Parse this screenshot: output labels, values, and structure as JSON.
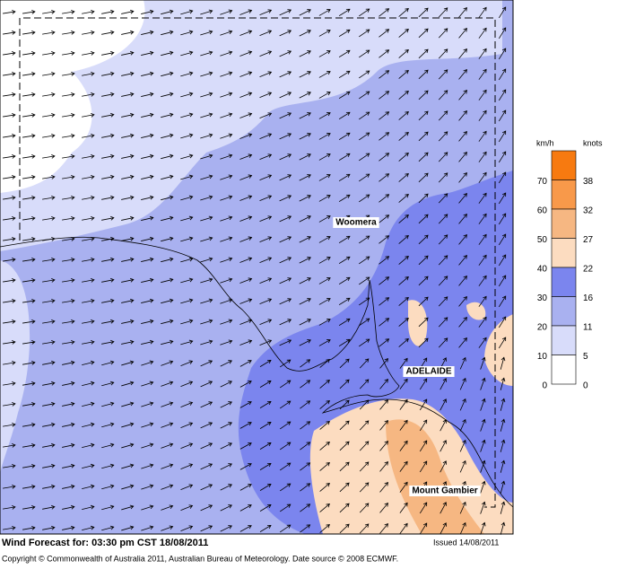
{
  "map": {
    "places": [
      {
        "name": "Woomera"
      },
      {
        "name": "ADELAIDE"
      },
      {
        "name": "Mount Gambier"
      }
    ]
  },
  "legend": {
    "unit_left": "km/h",
    "unit_right": "knots",
    "bands": [
      {
        "kmh": "70",
        "knots": "38",
        "color": "#f77a10"
      },
      {
        "kmh": "60",
        "knots": "32",
        "color": "#f8994a"
      },
      {
        "kmh": "50",
        "knots": "27",
        "color": "#f6b782"
      },
      {
        "kmh": "40",
        "knots": "22",
        "color": "#fcdcc0"
      },
      {
        "kmh": "30",
        "knots": "16",
        "color": "#7b85ee"
      },
      {
        "kmh": "20",
        "knots": "11",
        "color": "#a9b1f0"
      },
      {
        "kmh": "10",
        "knots": "5",
        "color": "#d8dcfa"
      },
      {
        "kmh": "0",
        "knots": "0",
        "color": "#ffffff"
      }
    ]
  },
  "footer": {
    "title": "Wind Forecast for: 03:30 pm CST 18/08/2011",
    "issued": "Issued 14/08/2011",
    "copyright": "Copyright © Commonwealth of Australia 2011, Australian Bureau of Meteorology. Date source © 2008 ECMWF."
  }
}
